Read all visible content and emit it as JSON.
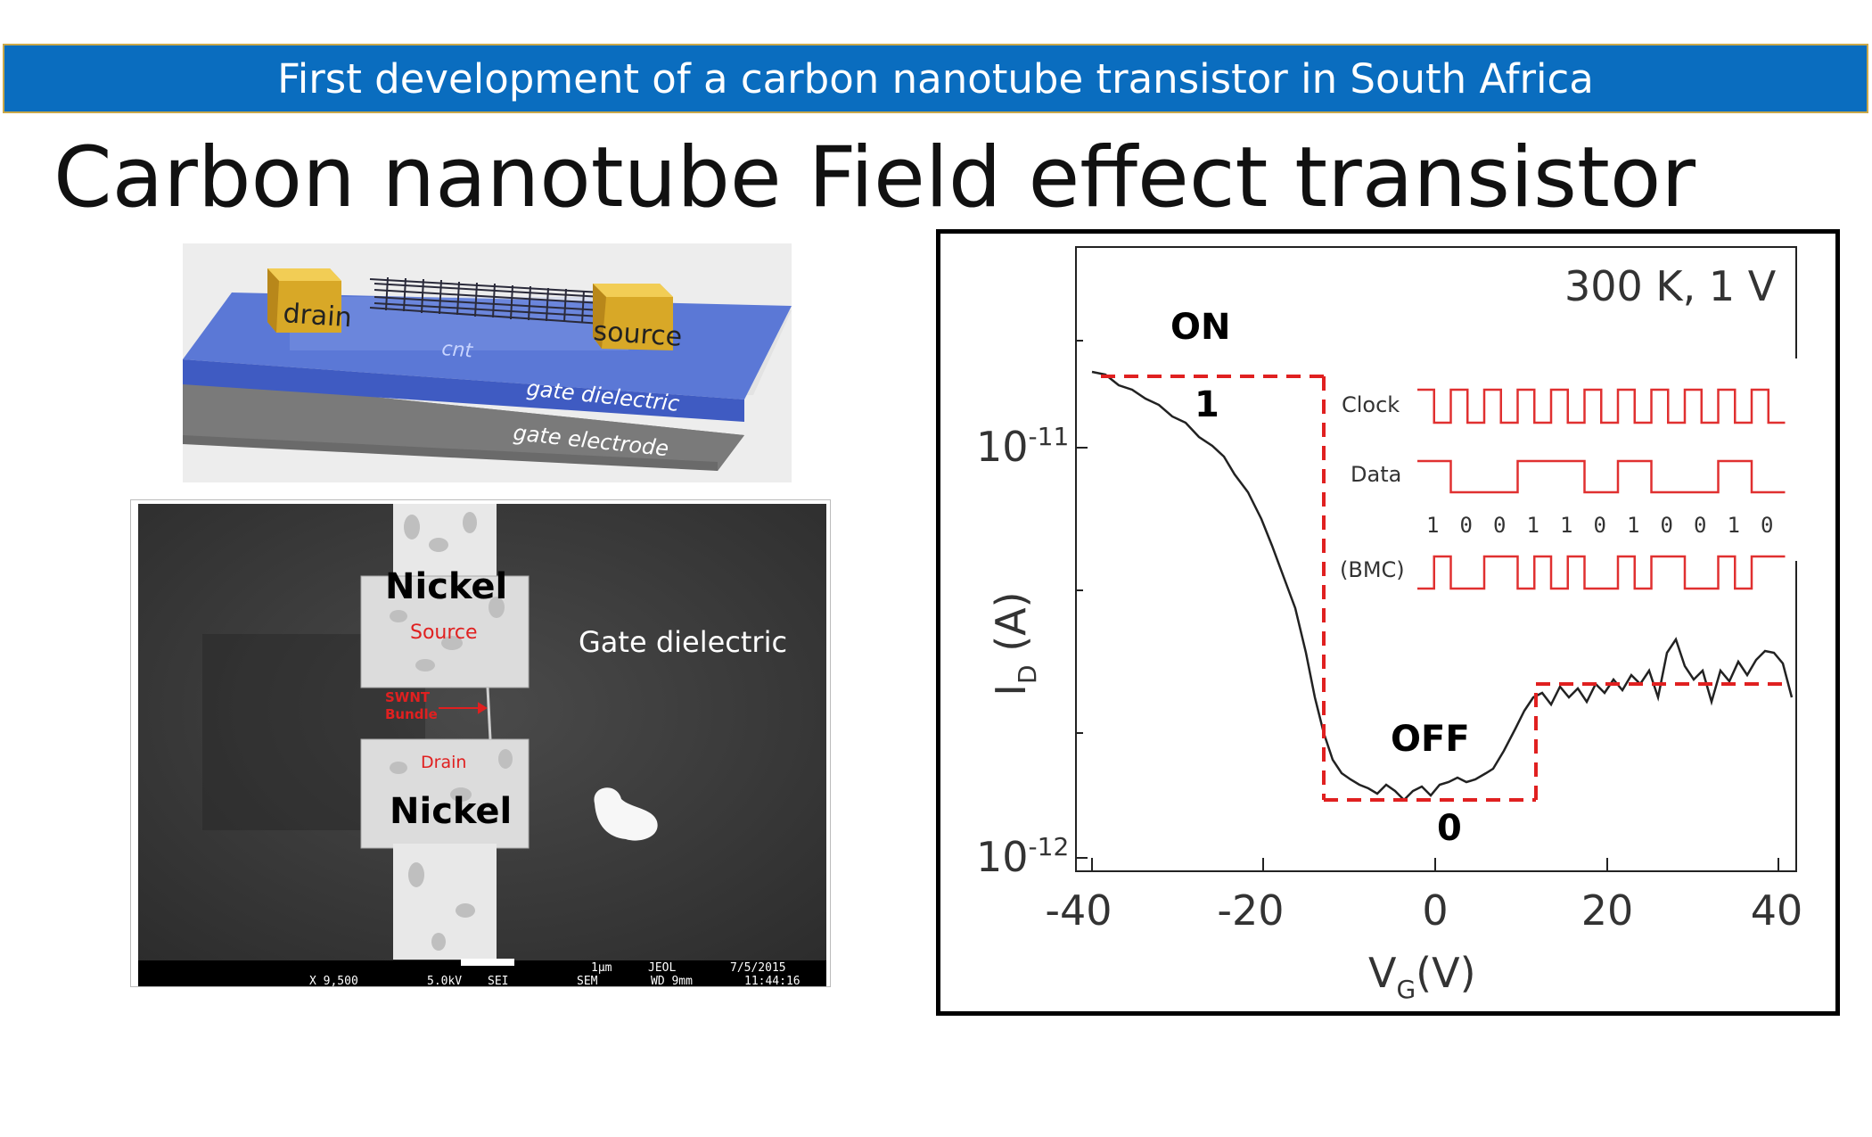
{
  "banner": {
    "text": "First development of a carbon nanotube transistor in South Africa"
  },
  "slide": {
    "title": "Carbon nanotube Field effect transistor"
  },
  "device_diagram": {
    "drain": "drain",
    "source": "source",
    "cnt": "cnt",
    "gate_dielectric": "gate dielectric",
    "gate_electrode": "gate electrode"
  },
  "sem_image": {
    "nickel_top": "Nickel",
    "source": "Source",
    "gate_dielectric": "Gate dielectric",
    "swnt_line1": "SWNT",
    "swnt_line2": "Bundle",
    "drain": "Drain",
    "nickel_bottom": "Nickel",
    "scalebar_text": "1μm",
    "maker": "JEOL",
    "date": "7/5/2015",
    "magnification": "X 9,500",
    "voltage": "5.0kV",
    "detector": "SEI",
    "mode": "SEM",
    "working_distance": "WD 9mm",
    "time": "11:44:16"
  },
  "plot": {
    "condition": "300 K, 1 V",
    "on_label": "ON",
    "one_label": "1",
    "off_label": "OFF",
    "zero_label": "0",
    "ylabel_main": "I",
    "ylabel_sub": "D",
    "ylabel_unit": " (A)",
    "xlabel_main": "V",
    "xlabel_sub": "G",
    "xlabel_unit": "(V)",
    "ytick_11": "10",
    "ytick_11_exp": "-11",
    "ytick_12": "10",
    "ytick_12_exp": "-12",
    "xticks": [
      "-40",
      "-20",
      "0",
      "20",
      "40"
    ]
  },
  "timing_inset": {
    "clock_label": "Clock",
    "data_label": "Data",
    "bmc_label": "(BMC)",
    "bits": [
      "1",
      "0",
      "0",
      "1",
      "1",
      "0",
      "1",
      "0",
      "0",
      "1",
      "0"
    ]
  },
  "colors": {
    "banner": "#0a6dbf",
    "dashed": "#e02020",
    "timing": "#e03030"
  }
}
